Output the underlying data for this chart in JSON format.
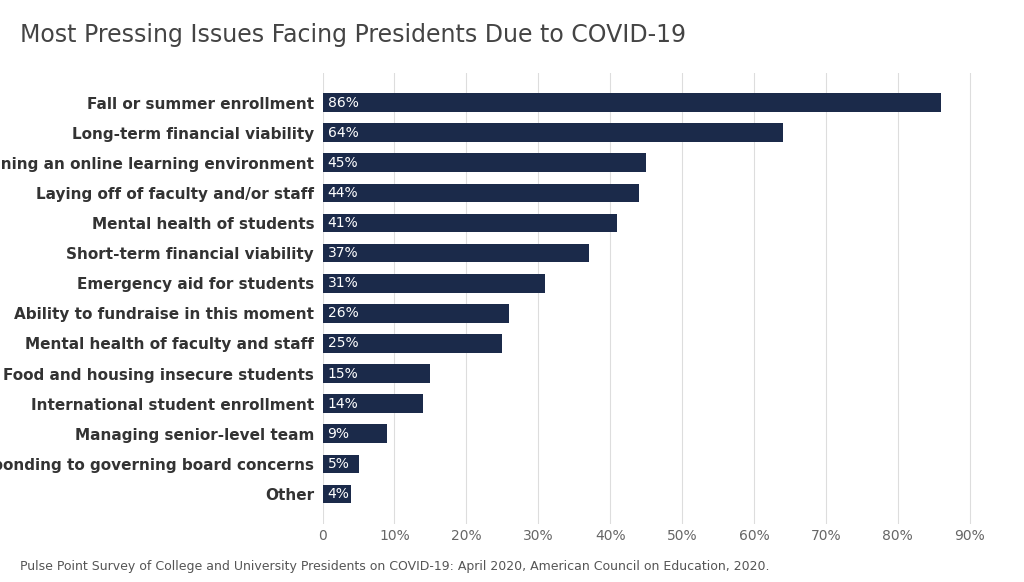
{
  "title": "Most Pressing Issues Facing Presidents Due to COVID-19",
  "categories": [
    "Fall or summer enrollment",
    "Long-term financial viability",
    "Sustaining an online learning environment",
    "Laying off of faculty and/or staff",
    "Mental health of students",
    "Short-term financial viability",
    "Emergency aid for students",
    "Ability to fundraise in this moment",
    "Mental health of faculty and staff",
    "Food and housing insecure students",
    "International student enrollment",
    "Managing senior-level team",
    "Responding to governing board concerns",
    "Other"
  ],
  "values": [
    86,
    64,
    45,
    44,
    41,
    37,
    31,
    26,
    25,
    15,
    14,
    9,
    5,
    4
  ],
  "bar_color": "#1b2a4a",
  "label_color": "#ffffff",
  "title_color": "#444444",
  "background_color": "#ffffff",
  "caption": "Pulse Point Survey of College and University Presidents on COVID-19: April 2020, American Council on Education, 2020.",
  "xlim": [
    0,
    94
  ],
  "xtick_values": [
    0,
    10,
    20,
    30,
    40,
    50,
    60,
    70,
    80,
    90
  ],
  "title_fontsize": 17,
  "label_fontsize": 11,
  "bar_label_fontsize": 10,
  "caption_fontsize": 9,
  "tick_fontsize": 10,
  "bar_height": 0.62
}
